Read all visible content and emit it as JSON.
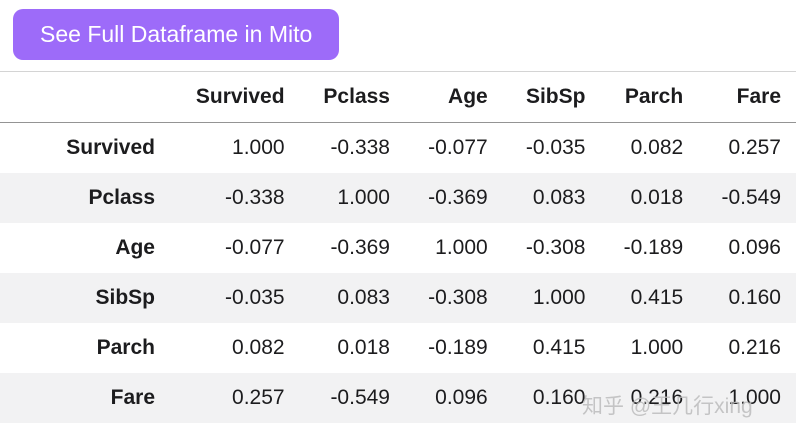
{
  "button": {
    "label": "See Full Dataframe in Mito",
    "bg_color": "#9d6bf9",
    "text_color": "#ffffff"
  },
  "table": {
    "corner": "",
    "columns": [
      "Survived",
      "Pclass",
      "Age",
      "SibSp",
      "Parch",
      "Fare"
    ],
    "rows": [
      {
        "label": "Survived",
        "values": [
          "1.000",
          "-0.338",
          "-0.077",
          "-0.035",
          "0.082",
          "0.257"
        ]
      },
      {
        "label": "Pclass",
        "values": [
          "-0.338",
          "1.000",
          "-0.369",
          "0.083",
          "0.018",
          "-0.549"
        ]
      },
      {
        "label": "Age",
        "values": [
          "-0.077",
          "-0.369",
          "1.000",
          "-0.308",
          "-0.189",
          "0.096"
        ]
      },
      {
        "label": "SibSp",
        "values": [
          "-0.035",
          "0.083",
          "-0.308",
          "1.000",
          "0.415",
          "0.160"
        ]
      },
      {
        "label": "Parch",
        "values": [
          "0.082",
          "0.018",
          "-0.189",
          "0.415",
          "1.000",
          "0.216"
        ]
      },
      {
        "label": "Fare",
        "values": [
          "0.257",
          "-0.549",
          "0.096",
          "0.160",
          "0.216",
          "1.000"
        ]
      }
    ]
  },
  "watermark": {
    "text": "知乎 @王几行xing",
    "color": "#bdbdbd"
  }
}
